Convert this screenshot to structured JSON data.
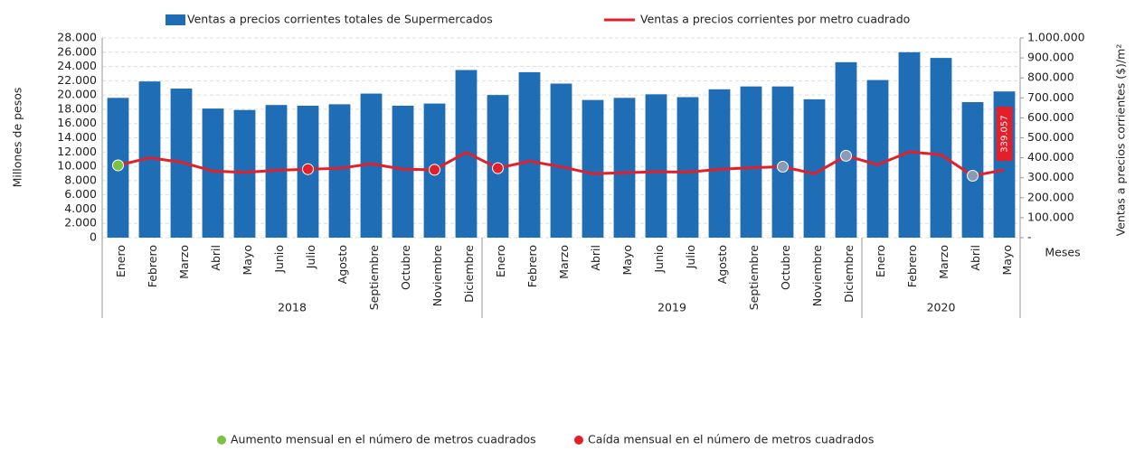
{
  "chart_data": {
    "type": "bar_line",
    "categories": [
      "Enero",
      "Febrero",
      "Marzo",
      "Abril",
      "Mayo",
      "Junio",
      "Julio",
      "Agosto",
      "Septiembre",
      "Octubre",
      "Noviembre",
      "Diciembre",
      "Enero",
      "Febrero",
      "Marzo",
      "Abril",
      "Mayo",
      "Junio",
      "Julio",
      "Agosto",
      "Septiembre",
      "Octubre",
      "Noviembre",
      "Diciembre",
      "Enero",
      "Febrero",
      "Marzo",
      "Abril",
      "Mayo"
    ],
    "groups": [
      {
        "name": "2018",
        "span": 12
      },
      {
        "name": "2019",
        "span": 12
      },
      {
        "name": "2020",
        "span": 5
      }
    ],
    "series": [
      {
        "name": "Ventas a precios corrientes totales de Supermercados",
        "color": "#1f6db5",
        "kind": "bar",
        "values": [
          19600,
          21900,
          20900,
          18100,
          17900,
          18600,
          18500,
          18700,
          20200,
          18500,
          18800,
          23500,
          20000,
          23200,
          21600,
          19300,
          19600,
          20100,
          19700,
          20800,
          21200,
          21200,
          19400,
          24600,
          22100,
          26000,
          25200,
          19000,
          20500
        ]
      },
      {
        "name": "Ventas a precios corrientes por metro cuadrado",
        "color": "#e3202a",
        "kind": "line",
        "axis": "y2",
        "values": [
          362000,
          400000,
          378000,
          333000,
          327000,
          337000,
          343000,
          347000,
          370000,
          343000,
          340000,
          427000,
          348000,
          383000,
          355000,
          320000,
          325000,
          330000,
          328000,
          342000,
          350000,
          355000,
          320000,
          410000,
          365000,
          430000,
          415000,
          310000,
          339057
        ],
        "value_labels": [
          null,
          null,
          null,
          null,
          null,
          null,
          null,
          null,
          null,
          null,
          null,
          null,
          null,
          null,
          null,
          null,
          null,
          null,
          null,
          null,
          null,
          null,
          null,
          null,
          null,
          null,
          null,
          null,
          "339.057"
        ],
        "marker_colors": [
          "#7cc142",
          null,
          null,
          null,
          null,
          null,
          "#e3202a",
          null,
          null,
          null,
          "#e3202a",
          null,
          "#e3202a",
          null,
          null,
          null,
          null,
          null,
          null,
          null,
          null,
          "#8a9bb8",
          null,
          "#8a9bb8",
          null,
          null,
          null,
          "#8a9bb8",
          null
        ]
      }
    ],
    "ylabel": "Millones de pesos",
    "y2label": "Ventas a precios corrientes ($)/m²",
    "xlabel": "Meses",
    "ylim": [
      0,
      28000
    ],
    "yticks": [
      0,
      {
        "value": 2000,
        "label": "2.000"
      },
      {
        "value": 4000,
        "label": "4.000"
      },
      {
        "value": 6000,
        "label": "6.000"
      },
      {
        "value": 8000,
        "label": "8.000"
      },
      {
        "value": 10000,
        "label": "10.000"
      },
      {
        "value": 12000,
        "label": "12.000"
      },
      {
        "value": 14000,
        "label": "14.000"
      },
      {
        "value": 16000,
        "label": "16.000"
      },
      {
        "value": 18000,
        "label": "18.000"
      },
      {
        "value": 20000,
        "label": "20.000"
      },
      {
        "value": 22000,
        "label": "22.000"
      },
      {
        "value": 24000,
        "label": "24.000"
      },
      {
        "value": 26000,
        "label": "26.000"
      },
      {
        "value": 28000,
        "label": "28.000"
      }
    ],
    "y2lim": [
      0,
      1000000
    ],
    "y2ticks": [
      {
        "value": 0,
        "label": "-"
      },
      {
        "value": 100000,
        "label": "100.000"
      },
      {
        "value": 200000,
        "label": "200.000"
      },
      {
        "value": 300000,
        "label": "300.000"
      },
      {
        "value": 400000,
        "label": "400.000"
      },
      {
        "value": 500000,
        "label": "500.000"
      },
      {
        "value": 600000,
        "label": "600.000"
      },
      {
        "value": 700000,
        "label": "700.000"
      },
      {
        "value": 800000,
        "label": "800.000"
      },
      {
        "value": 900000,
        "label": "900.000"
      },
      {
        "value": 1000000,
        "label": "1.000.000"
      }
    ],
    "grid": true,
    "marker_legend": [
      {
        "label": "Aumento mensual en el número de metros cuadrados",
        "color": "#7cc142"
      },
      {
        "label": "Caída mensual en el número de metros cuadrados",
        "color": "#e3202a"
      }
    ]
  }
}
